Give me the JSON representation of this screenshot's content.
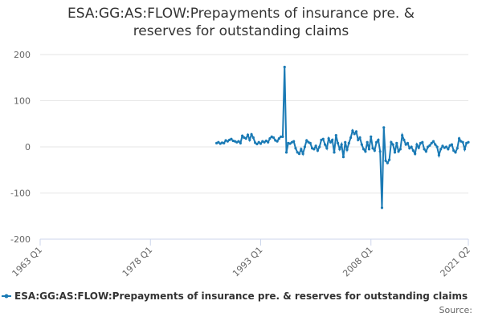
{
  "chart_data": {
    "type": "line",
    "title": "ESA:GG:AS:FLOW:Prepayments of insurance pre. & reserves for outstanding claims",
    "source": "Source:",
    "xlim": [
      "1963 Q1",
      "2021 Q2"
    ],
    "xticks": [
      "1963 Q1",
      "1978 Q1",
      "1993 Q1",
      "2008 Q1",
      "2021 Q2"
    ],
    "ylim": [
      -200,
      200
    ],
    "yticks": [
      -200,
      -100,
      0,
      100,
      200
    ],
    "grid": true,
    "x": [
      "1987 Q1",
      "1987 Q2",
      "1987 Q3",
      "1987 Q4",
      "1988 Q1",
      "1988 Q2",
      "1988 Q3",
      "1988 Q4",
      "1989 Q1",
      "1989 Q2",
      "1989 Q3",
      "1989 Q4",
      "1990 Q1",
      "1990 Q2",
      "1990 Q3",
      "1990 Q4",
      "1991 Q1",
      "1991 Q2",
      "1991 Q3",
      "1991 Q4",
      "1992 Q1",
      "1992 Q2",
      "1992 Q3",
      "1992 Q4",
      "1993 Q1",
      "1993 Q2",
      "1993 Q3",
      "1993 Q4",
      "1994 Q1",
      "1994 Q2",
      "1994 Q3",
      "1994 Q4",
      "1995 Q1",
      "1995 Q2",
      "1995 Q3",
      "1995 Q4",
      "1996 Q1",
      "1996 Q2",
      "1996 Q3",
      "1996 Q4",
      "1997 Q1",
      "1997 Q2",
      "1997 Q3",
      "1997 Q4",
      "1998 Q1",
      "1998 Q2",
      "1998 Q3",
      "1998 Q4",
      "1999 Q1",
      "1999 Q2",
      "1999 Q3",
      "1999 Q4",
      "2000 Q1",
      "2000 Q2",
      "2000 Q3",
      "2000 Q4",
      "2001 Q1",
      "2001 Q2",
      "2001 Q3",
      "2001 Q4",
      "2002 Q1",
      "2002 Q2",
      "2002 Q3",
      "2002 Q4",
      "2003 Q1",
      "2003 Q2",
      "2003 Q3",
      "2003 Q4",
      "2004 Q1",
      "2004 Q2",
      "2004 Q3",
      "2004 Q4",
      "2005 Q1",
      "2005 Q2",
      "2005 Q3",
      "2005 Q4",
      "2006 Q1",
      "2006 Q2",
      "2006 Q3",
      "2006 Q4",
      "2007 Q1",
      "2007 Q2",
      "2007 Q3",
      "2007 Q4",
      "2008 Q1",
      "2008 Q2",
      "2008 Q3",
      "2008 Q4",
      "2009 Q1",
      "2009 Q2",
      "2009 Q3",
      "2009 Q4",
      "2010 Q1",
      "2010 Q2",
      "2010 Q3",
      "2010 Q4",
      "2011 Q1",
      "2011 Q2",
      "2011 Q3",
      "2011 Q4",
      "2012 Q1",
      "2012 Q2",
      "2012 Q3",
      "2012 Q4",
      "2013 Q1",
      "2013 Q2",
      "2013 Q3",
      "2013 Q4",
      "2014 Q1",
      "2014 Q2",
      "2014 Q3",
      "2014 Q4",
      "2015 Q1",
      "2015 Q2",
      "2015 Q3",
      "2015 Q4",
      "2016 Q1",
      "2016 Q2",
      "2016 Q3",
      "2016 Q4",
      "2017 Q1",
      "2017 Q2",
      "2017 Q3",
      "2017 Q4",
      "2018 Q1",
      "2018 Q2",
      "2018 Q3",
      "2018 Q4",
      "2019 Q1",
      "2019 Q2",
      "2019 Q3",
      "2019 Q4",
      "2020 Q1",
      "2020 Q2",
      "2020 Q3",
      "2020 Q4",
      "2021 Q1",
      "2021 Q2"
    ],
    "series": [
      {
        "name": "ESA:GG:AS:FLOW:Prepayments of insurance pre. & reserves for outstanding claims",
        "color": "#1a7ab5",
        "values": [
          8,
          10,
          7,
          9,
          8,
          14,
          12,
          15,
          17,
          13,
          12,
          10,
          12,
          8,
          24,
          20,
          18,
          26,
          15,
          27,
          20,
          9,
          6,
          10,
          7,
          12,
          10,
          13,
          10,
          18,
          22,
          20,
          14,
          12,
          18,
          22,
          22,
          173,
          -12,
          8,
          7,
          10,
          12,
          -3,
          -12,
          -15,
          -5,
          -15,
          0,
          14,
          10,
          8,
          -3,
          -5,
          2,
          -8,
          0,
          15,
          17,
          5,
          -3,
          18,
          10,
          15,
          -12,
          25,
          8,
          -5,
          5,
          -22,
          10,
          -6,
          8,
          20,
          35,
          28,
          33,
          15,
          20,
          5,
          -5,
          -10,
          10,
          -5,
          22,
          -3,
          -8,
          10,
          15,
          -10,
          -132,
          42,
          -30,
          -35,
          -28,
          10,
          5,
          -12,
          8,
          -10,
          -5,
          25,
          15,
          5,
          8,
          -3,
          0,
          -8,
          -15,
          5,
          -2,
          8,
          10,
          -5,
          -10,
          0,
          3,
          8,
          12,
          5,
          0,
          -18,
          -5,
          2,
          -2,
          0,
          -5,
          3,
          5,
          -8,
          -12,
          -3,
          18,
          12,
          10,
          -5,
          8,
          10
        ]
      }
    ]
  }
}
